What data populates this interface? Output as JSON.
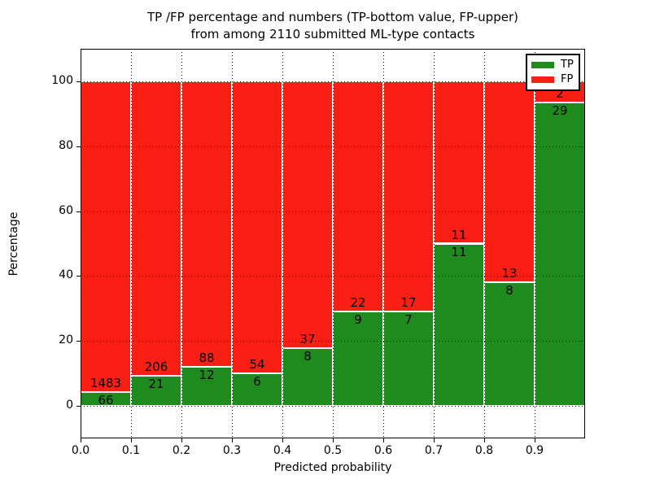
{
  "title": {
    "line1": "TP /FP percentage and numbers (TP-bottom value, FP-upper)",
    "line2": "from among 2110 submitted ML-type contacts"
  },
  "legend": {
    "items": [
      {
        "label": "TP",
        "color": "#1f8b1f"
      },
      {
        "label": "FP",
        "color": "#fa1f14"
      }
    ]
  },
  "colors": {
    "tp_green": "#1f8b1f",
    "fp_red": "#fa1f14",
    "bar_edge": "#ffffff",
    "grid": "#000000",
    "background": "#ffffff"
  },
  "chart_data": {
    "type": "bar",
    "stacked": true,
    "normalized_to_percent": true,
    "title": "TP /FP percentage and numbers (TP-bottom value, FP-upper) from among 2110 submitted ML-type contacts",
    "xlabel": "Predicted probability",
    "ylabel": "Percentage",
    "total_contacts": 2110,
    "categories": [
      "0.0-0.1",
      "0.1-0.2",
      "0.2-0.3",
      "0.3-0.4",
      "0.4-0.5",
      "0.5-0.6",
      "0.6-0.7",
      "0.7-0.8",
      "0.8-0.9",
      "0.9-1.0"
    ],
    "series": [
      {
        "name": "TP",
        "position": "bottom",
        "color": "#1f8b1f",
        "values": [
          66,
          21,
          12,
          6,
          8,
          9,
          7,
          11,
          8,
          29
        ]
      },
      {
        "name": "FP",
        "position": "top",
        "color": "#fa1f14",
        "values": [
          1483,
          206,
          88,
          54,
          37,
          22,
          17,
          11,
          13,
          2
        ]
      }
    ],
    "tp_percent_of_bin": [
      4.26,
      9.25,
      12.0,
      10.0,
      17.78,
      29.03,
      29.17,
      50.0,
      38.1,
      93.55
    ],
    "xticks": [
      "0.0",
      "0.1",
      "0.2",
      "0.3",
      "0.4",
      "0.5",
      "0.6",
      "0.7",
      "0.8",
      "0.9"
    ],
    "yticks": [
      0,
      20,
      40,
      60,
      80,
      100
    ],
    "xlim": [
      0.0,
      1.0
    ],
    "ylim": [
      -10,
      110
    ],
    "grid": "dotted",
    "legend_position": "upper right"
  }
}
